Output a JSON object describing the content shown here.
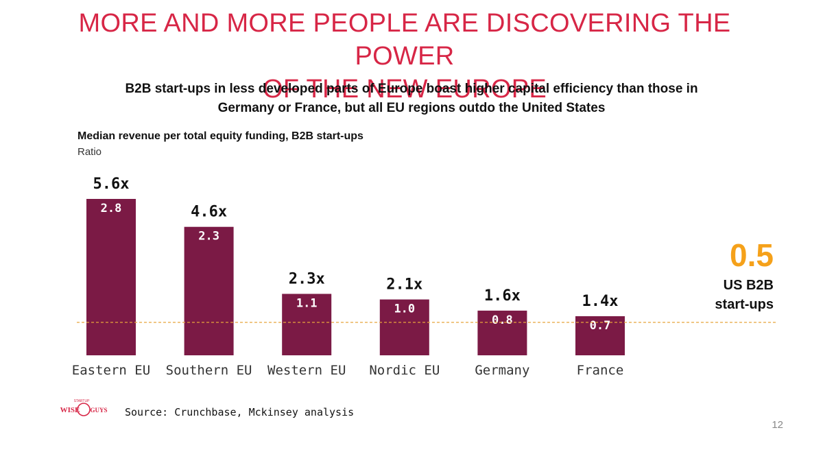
{
  "slide": {
    "title_line1": "MORE AND MORE PEOPLE ARE DISCOVERING THE POWER",
    "title_line2": "OF THE NEW EUROPE",
    "subtitle_line1": "B2B start-ups in less developed parts of Europe boast higher capital efficiency than those in",
    "subtitle_line2": "Germany or France, but all EU regions outdo the United States",
    "source": "Source: Crunchbase, Mckinsey analysis",
    "page_number": "12",
    "logo_text": "WISE GUYS",
    "logo_small_text": "STARTUP"
  },
  "colors": {
    "bar": "#7b1a45",
    "title": "#d72646",
    "us_accent": "#f5a11a",
    "reference_line": "#e8a33a"
  },
  "chart_data": {
    "type": "bar",
    "title": "Median revenue per total equity funding, B2B start-ups",
    "ylabel": "Ratio",
    "xlabel": "",
    "categories": [
      "Eastern EU",
      "Southern EU",
      "Western EU",
      "Nordic EU",
      "Germany",
      "France"
    ],
    "values": [
      2.8,
      2.3,
      1.1,
      1.0,
      0.8,
      0.7
    ],
    "multiples": [
      "5.6x",
      "4.6x",
      "2.3x",
      "2.1x",
      "1.6x",
      "1.4x"
    ],
    "value_labels": [
      "2.8",
      "2.3",
      "1.1",
      "1.0",
      "0.8",
      "0.7"
    ],
    "ylim": [
      0,
      2.8
    ],
    "reference": {
      "value": 0.5,
      "label": "0.5",
      "description": "US B2B start-ups"
    },
    "grid": false
  }
}
